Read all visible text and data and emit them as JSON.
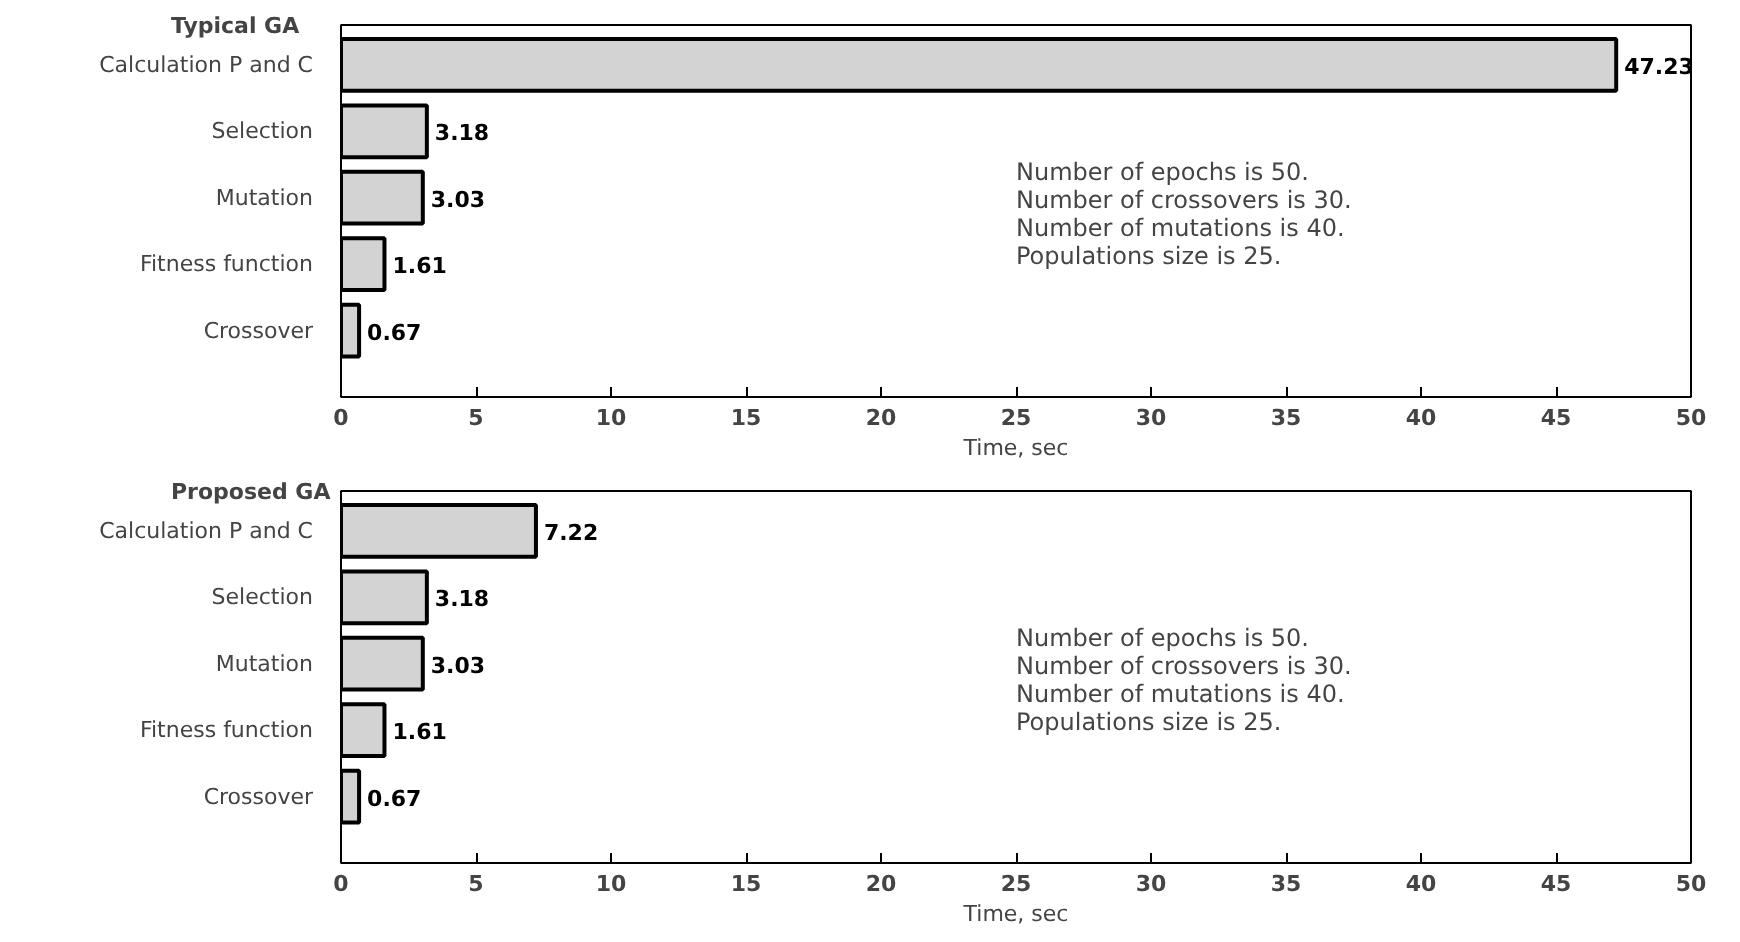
{
  "chart_data": [
    {
      "type": "bar",
      "orientation": "horizontal",
      "title": "Typical GA",
      "xlabel": "Time, sec",
      "categories": [
        "Calculation P and C",
        "Selection",
        "Mutation",
        "Fitness function",
        "Crossover"
      ],
      "values": [
        47.23,
        3.18,
        3.03,
        1.61,
        0.67
      ],
      "color": "#d3d3d3",
      "xlim": [
        0,
        50
      ],
      "xticks": [
        0,
        5,
        10,
        15,
        20,
        25,
        30,
        35,
        40,
        45,
        50
      ],
      "data_labels": true,
      "annotations": [
        "Number of epochs is 50.",
        "Number of crossovers is 30.",
        "Number of mutations is 40.",
        "Populations size is 25."
      ]
    },
    {
      "type": "bar",
      "orientation": "horizontal",
      "title": "Proposed GA",
      "xlabel": "Time, sec",
      "categories": [
        "Calculation P and C",
        "Selection",
        "Mutation",
        "Fitness function",
        "Crossover"
      ],
      "values": [
        7.22,
        3.18,
        3.03,
        1.61,
        0.67
      ],
      "color": "#d3d3d3",
      "xlim": [
        0,
        50
      ],
      "xticks": [
        0,
        5,
        10,
        15,
        20,
        25,
        30,
        35,
        40,
        45,
        50
      ],
      "data_labels": true,
      "annotations": [
        "Number of epochs is 50.",
        "Number of crossovers is 30.",
        "Number of mutations is 40.",
        "Populations size is 25."
      ]
    }
  ]
}
